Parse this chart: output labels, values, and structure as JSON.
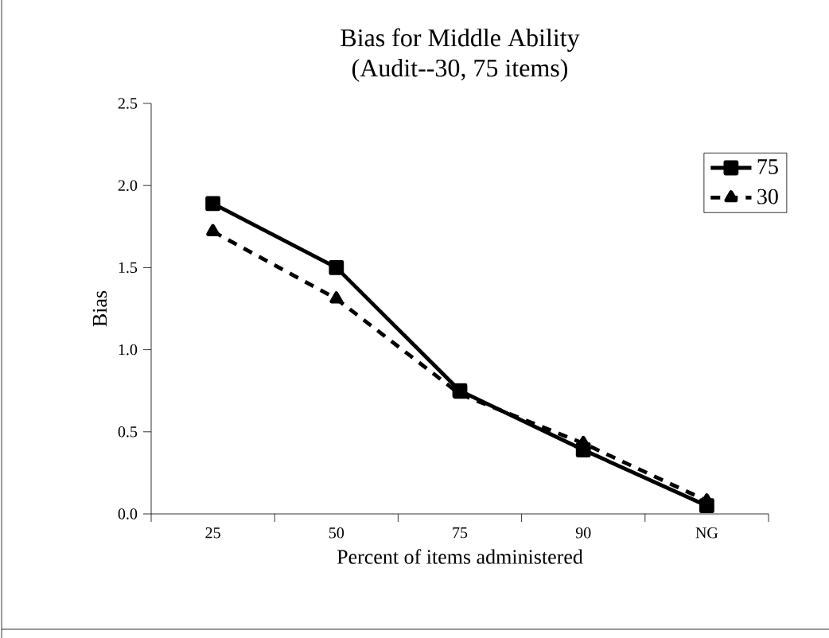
{
  "chart_data": {
    "type": "line",
    "title": "Bias for Middle Ability\n(Audit--30, 75 items)",
    "xlabel": "Percent of items administered",
    "ylabel": "Bias",
    "categories": [
      "25",
      "50",
      "75",
      "90",
      "NG"
    ],
    "series": [
      {
        "name": "75",
        "color": "#000000",
        "values": [
          1.89,
          1.5,
          0.75,
          0.39,
          0.05
        ],
        "marker": "square",
        "line_style": "solid"
      },
      {
        "name": "30",
        "color": "#000000",
        "values": [
          1.72,
          1.31,
          0.73,
          0.43,
          0.08
        ],
        "marker": "triangle",
        "line_style": "dashed"
      }
    ],
    "ylim": [
      0,
      2.5
    ],
    "yticks": [
      {
        "value": 0,
        "label": "0.0"
      },
      {
        "value": 0.5,
        "label": "0.5"
      },
      {
        "value": 1,
        "label": "1.0"
      },
      {
        "value": 1.5,
        "label": "1.5"
      },
      {
        "value": 2,
        "label": "2.0"
      },
      {
        "value": 2.5,
        "label": "2.5"
      }
    ],
    "grid": false,
    "legend": "top right"
  }
}
